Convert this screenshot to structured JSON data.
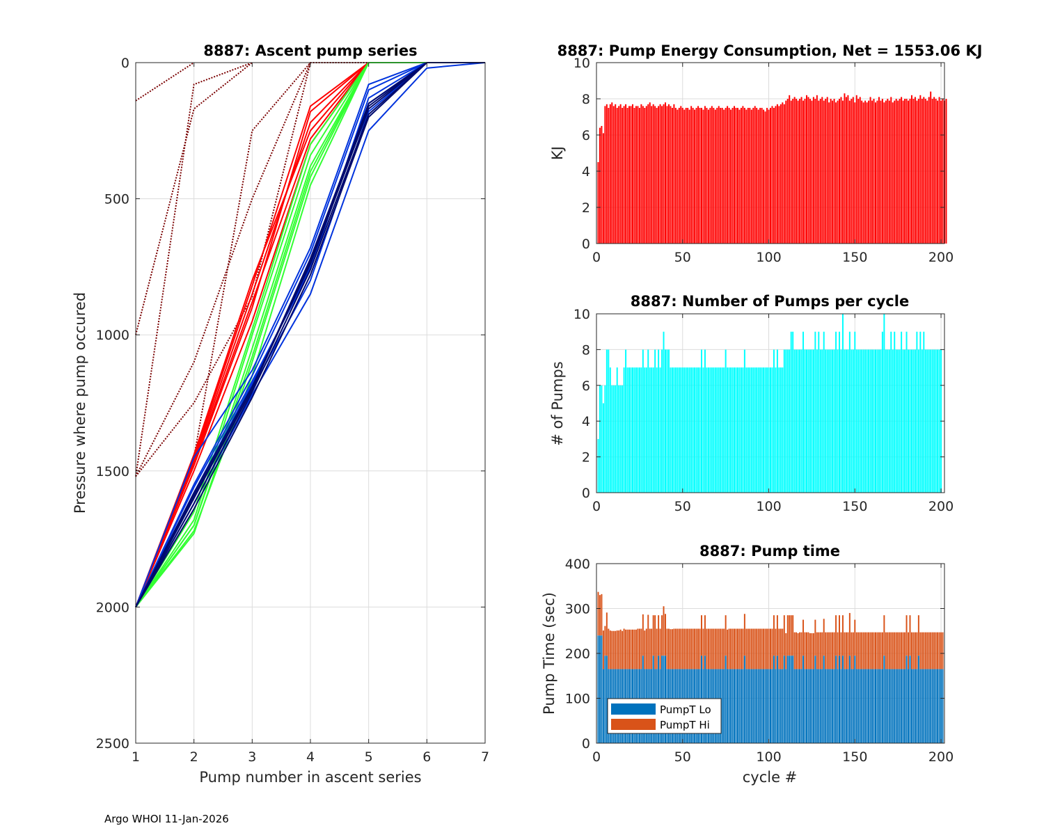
{
  "footer": "Argo WHOI 11-Jan-2026",
  "colors": {
    "red": "#ff0000",
    "cyan": "#00ffff",
    "pump_lo": "#0072bd",
    "pump_hi": "#d95319",
    "dark_red": "#7a0000",
    "green": "#33ff33",
    "blue": "#0033dd",
    "navy": "#000a6e"
  },
  "chart_data": [
    {
      "id": "ascent",
      "type": "line",
      "title": "8887: Ascent pump series",
      "xlabel": "Pump number in ascent series",
      "ylabel": "Pressure where pump occured",
      "xlim": [
        1,
        7
      ],
      "ylim": [
        0,
        2500
      ],
      "y_reversed": true,
      "xticks": [
        1,
        2,
        3,
        4,
        5,
        6,
        7
      ],
      "yticks": [
        0,
        500,
        1000,
        1500,
        2000,
        2500
      ],
      "grid": true,
      "series": [
        {
          "name": "early deep-red",
          "color": "#7a0000",
          "dotted_to_surface": true,
          "profiles": [
            [
              140,
              0
            ],
            [
              1000,
              170,
              0
            ],
            [
              1520,
              1100,
              500,
              0
            ],
            [
              1520,
              80,
              0
            ],
            [
              1520,
              1250,
              860,
              0
            ],
            [
              2000,
              1450,
              250,
              0,
              0
            ]
          ]
        },
        {
          "name": "red",
          "color": "#ff0000",
          "profiles": [
            [
              2000,
              1440,
              800,
              250,
              0,
              0
            ],
            [
              2000,
              1460,
              850,
              220,
              0,
              0
            ],
            [
              2000,
              1480,
              900,
              180,
              0,
              0
            ],
            [
              2000,
              1500,
              950,
              300,
              0,
              0
            ],
            [
              2000,
              1450,
              820,
              160,
              0,
              0
            ],
            [
              2000,
              1470,
              880,
              280,
              0,
              0
            ]
          ]
        },
        {
          "name": "green",
          "color": "#33ff33",
          "profiles": [
            [
              2000,
              1700,
              1050,
              380,
              0,
              0
            ],
            [
              2000,
              1730,
              1100,
              420,
              0,
              0
            ],
            [
              2000,
              1680,
              1000,
              340,
              0,
              0
            ],
            [
              2000,
              1720,
              1150,
              450,
              0,
              0
            ],
            [
              2000,
              1650,
              980,
              300,
              0,
              0
            ],
            [
              2000,
              1700,
              1080,
              400,
              0,
              0
            ]
          ]
        },
        {
          "name": "blue",
          "color": "#0033dd",
          "profiles": [
            [
              2000,
              1550,
              1150,
              700,
              100,
              0,
              0
            ],
            [
              2000,
              1580,
              1180,
              750,
              150,
              0,
              0
            ],
            [
              2000,
              1600,
              1200,
              800,
              180,
              0,
              0
            ],
            [
              2000,
              1450,
              1130,
              680,
              80,
              0,
              0
            ],
            [
              2000,
              1620,
              1220,
              850,
              250,
              20,
              0
            ],
            [
              2000,
              1560,
              1170,
              760,
              130,
              0,
              0
            ]
          ]
        },
        {
          "name": "navy",
          "color": "#000a6e",
          "profiles": [
            [
              2000,
              1600,
              1200,
              720,
              160,
              0,
              0
            ],
            [
              2000,
              1640,
              1230,
              780,
              200,
              0,
              0
            ],
            [
              2000,
              1580,
              1190,
              740,
              170,
              0,
              0
            ],
            [
              2000,
              1620,
              1210,
              760,
              190,
              0,
              0
            ],
            [
              2000,
              1590,
              1200,
              730,
              150,
              0,
              0
            ]
          ]
        }
      ]
    },
    {
      "id": "energy",
      "type": "bar",
      "title": "8887: Pump Energy Consumption,  Net = 1553.06 KJ",
      "xlabel": "",
      "ylabel": "KJ",
      "xlim": [
        0,
        202
      ],
      "ylim": [
        0,
        10
      ],
      "xticks": [
        0,
        50,
        100,
        150,
        200
      ],
      "yticks": [
        0,
        2,
        4,
        6,
        8,
        10
      ],
      "grid": true,
      "color": "#ff0000",
      "x_start": 1,
      "values": [
        4.5,
        6.4,
        6.5,
        6.1,
        7.6,
        7.7,
        7.5,
        7.7,
        7.8,
        7.6,
        7.7,
        7.5,
        7.6,
        7.7,
        7.5,
        7.6,
        7.7,
        7.5,
        7.6,
        7.6,
        7.7,
        7.5,
        7.6,
        7.6,
        7.5,
        7.7,
        7.6,
        7.5,
        7.6,
        7.7,
        7.8,
        7.6,
        7.7,
        7.6,
        7.5,
        7.6,
        7.7,
        7.6,
        7.7,
        7.8,
        7.6,
        7.7,
        7.6,
        7.5,
        7.7,
        7.5,
        7.4,
        7.5,
        7.6,
        7.5,
        7.4,
        7.5,
        7.5,
        7.4,
        7.6,
        7.5,
        7.4,
        7.5,
        7.6,
        7.5,
        7.5,
        7.4,
        7.6,
        7.5,
        7.4,
        7.5,
        7.6,
        7.5,
        7.4,
        7.5,
        7.6,
        7.5,
        7.5,
        7.4,
        7.5,
        7.6,
        7.5,
        7.4,
        7.5,
        7.6,
        7.5,
        7.5,
        7.4,
        7.5,
        7.6,
        7.5,
        7.4,
        7.5,
        7.5,
        7.4,
        7.5,
        7.6,
        7.5,
        7.4,
        7.5,
        7.5,
        7.4,
        7.3,
        7.5,
        7.4,
        7.5,
        7.6,
        7.5,
        7.6,
        7.7,
        7.6,
        7.7,
        7.8,
        7.7,
        7.9,
        8.0,
        8.2,
        7.9,
        8.0,
        8.1,
        8.0,
        7.9,
        8.0,
        8.1,
        7.9,
        8.0,
        8.2,
        8.1,
        8.0,
        7.9,
        8.1,
        8.0,
        8.2,
        7.9,
        8.0,
        8.1,
        7.9,
        8.0,
        8.1,
        7.8,
        8.0,
        7.9,
        8.0,
        7.8,
        7.9,
        8.0,
        8.1,
        7.9,
        8.3,
        8.1,
        8.2,
        7.9,
        8.0,
        8.1,
        7.8,
        8.2,
        8.0,
        8.1,
        7.9,
        7.8,
        7.9,
        7.8,
        7.9,
        8.1,
        7.9,
        8.0,
        7.8,
        7.9,
        8.1,
        7.9,
        8.0,
        7.8,
        7.9,
        8.0,
        7.9,
        8.1,
        7.8,
        7.9,
        8.0,
        7.9,
        8.0,
        8.1,
        7.9,
        8.0,
        8.0,
        7.9,
        8.0,
        8.2,
        8.0,
        8.1,
        7.9,
        8.0,
        8.2,
        8.0,
        8.1,
        8.0,
        7.9,
        8.1,
        8.4,
        8.0,
        8.1,
        8.0,
        7.9,
        8.1,
        7.9,
        8.0,
        7.9,
        8.0
      ]
    },
    {
      "id": "pumps",
      "type": "bar",
      "title": "8887: Number of Pumps per cycle",
      "xlabel": "",
      "ylabel": "# of Pumps",
      "xlim": [
        0,
        202
      ],
      "ylim": [
        0,
        10
      ],
      "xticks": [
        0,
        50,
        100,
        150,
        200
      ],
      "yticks": [
        0,
        2,
        4,
        6,
        8,
        10
      ],
      "grid": true,
      "color": "#00ffff",
      "x_start": 1,
      "values": [
        3,
        6,
        6,
        5,
        6,
        8,
        8,
        7,
        6,
        6,
        6,
        7,
        6,
        6,
        6,
        7,
        8,
        7,
        7,
        7,
        7,
        7,
        7,
        7,
        7,
        7,
        8,
        7,
        7,
        8,
        7,
        7,
        7,
        8,
        7,
        8,
        7,
        8,
        9,
        8,
        8,
        8,
        7,
        7,
        7,
        7,
        7,
        7,
        7,
        7,
        7,
        7,
        7,
        7,
        7,
        7,
        7,
        7,
        7,
        7,
        8,
        7,
        8,
        7,
        7,
        7,
        7,
        7,
        7,
        7,
        7,
        7,
        7,
        7,
        8,
        7,
        7,
        7,
        7,
        7,
        7,
        7,
        7,
        7,
        7,
        8,
        7,
        7,
        7,
        7,
        7,
        7,
        7,
        7,
        7,
        7,
        7,
        7,
        7,
        7,
        7,
        7,
        8,
        7,
        8,
        7,
        7,
        7,
        8,
        8,
        8,
        8,
        9,
        9,
        8,
        8,
        8,
        8,
        8,
        9,
        8,
        8,
        8,
        8,
        8,
        8,
        9,
        8,
        9,
        8,
        8,
        9,
        8,
        8,
        8,
        8,
        8,
        8,
        9,
        8,
        9,
        8,
        10,
        8,
        8,
        8,
        9,
        8,
        8,
        9,
        8,
        8,
        8,
        8,
        8,
        8,
        8,
        8,
        8,
        8,
        8,
        8,
        8,
        8,
        8,
        9,
        10,
        8,
        8,
        8,
        9,
        8,
        9,
        8,
        8,
        8,
        9,
        8,
        8,
        9,
        8,
        8,
        8,
        8,
        8,
        9,
        8,
        9,
        8,
        9,
        8,
        8,
        8,
        8,
        8,
        8,
        8,
        8,
        8,
        8
      ]
    },
    {
      "id": "pumptime",
      "type": "bar",
      "stacked": true,
      "title": "8887: Pump time",
      "xlabel": "cycle #",
      "ylabel": "Pump Time (sec)",
      "xlim": [
        0,
        202
      ],
      "ylim": [
        0,
        400
      ],
      "xticks": [
        0,
        50,
        100,
        150,
        200
      ],
      "yticks": [
        0,
        100,
        200,
        300,
        400
      ],
      "grid": true,
      "x_start": 1,
      "legend": {
        "location": "lower-left",
        "entries": [
          "PumpT Lo",
          "PumpT Hi"
        ]
      },
      "series": [
        {
          "name": "PumpT Lo",
          "color": "#0072bd",
          "values": [
            240,
            240,
            240,
            165,
            195,
            195,
            165,
            165,
            165,
            165,
            165,
            165,
            165,
            165,
            165,
            165,
            165,
            165,
            165,
            165,
            165,
            165,
            165,
            165,
            165,
            165,
            195,
            165,
            165,
            165,
            165,
            165,
            195,
            165,
            165,
            195,
            165,
            195,
            195,
            195,
            165,
            165,
            165,
            165,
            165,
            165,
            165,
            165,
            165,
            165,
            165,
            165,
            165,
            165,
            165,
            165,
            165,
            165,
            165,
            165,
            195,
            165,
            195,
            165,
            165,
            165,
            165,
            165,
            165,
            165,
            165,
            165,
            165,
            165,
            195,
            165,
            165,
            165,
            165,
            165,
            165,
            165,
            165,
            165,
            165,
            195,
            165,
            165,
            165,
            165,
            165,
            165,
            165,
            165,
            165,
            165,
            165,
            165,
            165,
            165,
            165,
            165,
            195,
            165,
            195,
            165,
            165,
            165,
            195,
            165,
            195,
            195,
            195,
            195,
            165,
            165,
            165,
            165,
            165,
            195,
            165,
            165,
            165,
            165,
            165,
            165,
            195,
            165,
            165,
            165,
            165,
            195,
            165,
            165,
            165,
            165,
            165,
            165,
            195,
            165,
            195,
            165,
            195,
            165,
            165,
            165,
            195,
            165,
            165,
            195,
            165,
            165,
            165,
            165,
            165,
            165,
            165,
            165,
            165,
            165,
            165,
            165,
            165,
            165,
            165,
            165,
            195,
            165,
            165,
            165,
            165,
            165,
            165,
            165,
            165,
            165,
            165,
            165,
            165,
            195,
            165,
            195,
            165,
            165,
            165,
            165,
            195,
            165,
            165,
            165,
            165,
            165,
            165,
            165,
            165,
            165,
            165,
            165,
            165,
            165,
            165
          ]
        },
        {
          "name": "PumpT Hi",
          "color": "#d95319",
          "values": [
            97,
            90,
            92,
            86,
            66,
            96,
            90,
            86,
            85,
            85,
            85,
            86,
            86,
            88,
            85,
            90,
            88,
            88,
            88,
            88,
            88,
            88,
            88,
            90,
            90,
            90,
            92,
            86,
            90,
            121,
            90,
            90,
            90,
            120,
            90,
            90,
            90,
            90,
            110,
            93,
            90,
            90,
            89,
            89,
            90,
            90,
            90,
            90,
            90,
            90,
            90,
            90,
            90,
            90,
            90,
            90,
            90,
            90,
            90,
            90,
            90,
            90,
            90,
            90,
            90,
            90,
            90,
            90,
            90,
            90,
            90,
            90,
            90,
            90,
            90,
            88,
            90,
            90,
            90,
            90,
            90,
            90,
            90,
            90,
            90,
            93,
            90,
            90,
            90,
            90,
            90,
            90,
            90,
            90,
            90,
            90,
            90,
            90,
            90,
            90,
            90,
            90,
            90,
            90,
            90,
            90,
            90,
            90,
            90,
            80,
            90,
            90,
            90,
            90,
            82,
            82,
            80,
            82,
            82,
            80,
            82,
            82,
            82,
            80,
            80,
            80,
            80,
            82,
            82,
            82,
            82,
            82,
            82,
            82,
            82,
            82,
            82,
            82,
            90,
            82,
            90,
            82,
            90,
            82,
            82,
            82,
            95,
            82,
            82,
            80,
            82,
            82,
            82,
            82,
            82,
            82,
            82,
            82,
            82,
            82,
            82,
            82,
            82,
            82,
            82,
            82,
            90,
            82,
            82,
            82,
            82,
            82,
            82,
            82,
            82,
            82,
            82,
            82,
            82,
            90,
            82,
            90,
            82,
            82,
            82,
            82,
            90,
            82,
            82,
            82,
            82,
            82,
            82,
            82,
            82,
            82,
            82,
            82,
            82,
            82,
            82
          ]
        }
      ]
    }
  ]
}
